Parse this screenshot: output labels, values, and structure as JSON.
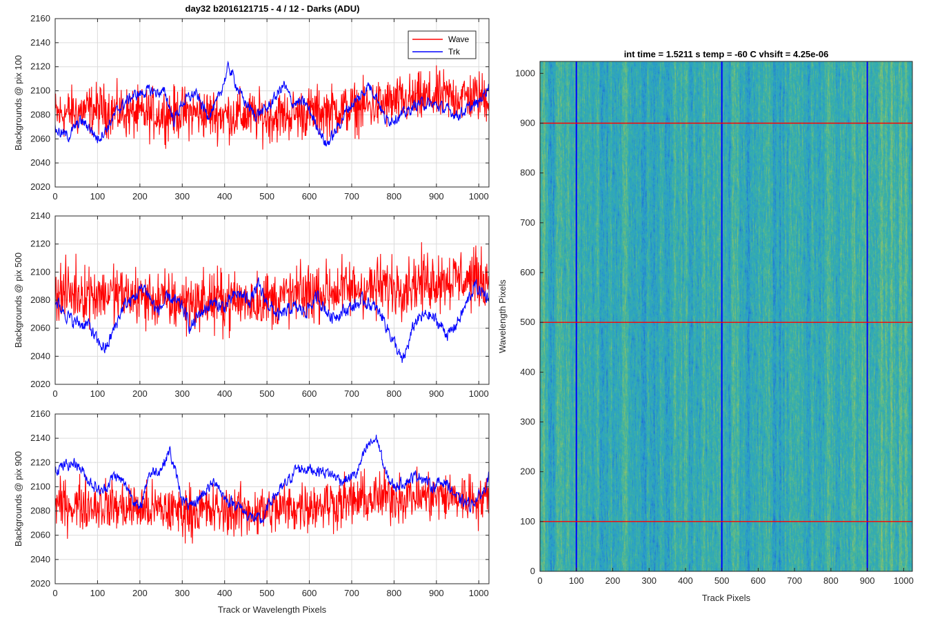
{
  "figure_title": "day32 b2016121715 - 4 / 12 - Darks (ADU)",
  "colors": {
    "wave": "#ff0000",
    "trk": "#0000ff",
    "grid": "#dcdcdc",
    "axis": "#262626"
  },
  "legend": {
    "placement": "top-right",
    "entries": [
      "Wave",
      "Trk"
    ]
  },
  "chart_data": [
    {
      "type": "line",
      "ylabel": "Backgrounds @ pix 100",
      "xlabel": "",
      "xlim": [
        0,
        1024
      ],
      "ylim": [
        2020,
        2160
      ],
      "xticks": [
        0,
        100,
        200,
        300,
        400,
        500,
        600,
        700,
        800,
        900,
        1000
      ],
      "yticks": [
        2020,
        2040,
        2060,
        2080,
        2100,
        2120,
        2140,
        2160
      ],
      "grid": true,
      "series": [
        {
          "name": "Wave",
          "mean": 2082,
          "noise": 13,
          "points": [
            [
              0,
              2080
            ],
            [
              100,
              2085
            ],
            [
              200,
              2080
            ],
            [
              300,
              2082
            ],
            [
              400,
              2080
            ],
            [
              500,
              2078
            ],
            [
              600,
              2082
            ],
            [
              700,
              2085
            ],
            [
              800,
              2090
            ],
            [
              900,
              2095
            ],
            [
              1024,
              2095
            ]
          ]
        },
        {
          "name": "Trk",
          "mean": 2085,
          "noise": 4,
          "points": [
            [
              0,
              2068
            ],
            [
              30,
              2062
            ],
            [
              60,
              2075
            ],
            [
              80,
              2070
            ],
            [
              100,
              2060
            ],
            [
              120,
              2068
            ],
            [
              150,
              2085
            ],
            [
              180,
              2095
            ],
            [
              220,
              2100
            ],
            [
              260,
              2098
            ],
            [
              280,
              2075
            ],
            [
              300,
              2090
            ],
            [
              330,
              2098
            ],
            [
              360,
              2080
            ],
            [
              380,
              2088
            ],
            [
              410,
              2120
            ],
            [
              440,
              2095
            ],
            [
              470,
              2080
            ],
            [
              500,
              2085
            ],
            [
              540,
              2105
            ],
            [
              560,
              2090
            ],
            [
              590,
              2090
            ],
            [
              620,
              2070
            ],
            [
              640,
              2055
            ],
            [
              660,
              2065
            ],
            [
              690,
              2085
            ],
            [
              720,
              2095
            ],
            [
              740,
              2105
            ],
            [
              760,
              2095
            ],
            [
              780,
              2075
            ],
            [
              820,
              2080
            ],
            [
              860,
              2090
            ],
            [
              900,
              2088
            ],
            [
              950,
              2080
            ],
            [
              1000,
              2090
            ],
            [
              1024,
              2105
            ]
          ]
        }
      ]
    },
    {
      "type": "line",
      "ylabel": "Backgrounds @ pix 500",
      "xlabel": "",
      "xlim": [
        0,
        1024
      ],
      "ylim": [
        2020,
        2140
      ],
      "xticks": [
        0,
        100,
        200,
        300,
        400,
        500,
        600,
        700,
        800,
        900,
        1000
      ],
      "yticks": [
        2020,
        2040,
        2060,
        2080,
        2100,
        2120,
        2140
      ],
      "grid": true,
      "series": [
        {
          "name": "Wave",
          "mean": 2082,
          "noise": 13,
          "points": [
            [
              0,
              2085
            ],
            [
              100,
              2085
            ],
            [
              200,
              2082
            ],
            [
              300,
              2078
            ],
            [
              400,
              2080
            ],
            [
              500,
              2080
            ],
            [
              600,
              2085
            ],
            [
              700,
              2088
            ],
            [
              800,
              2090
            ],
            [
              900,
              2095
            ],
            [
              1024,
              2095
            ]
          ]
        },
        {
          "name": "Trk",
          "mean": 2075,
          "noise": 4,
          "points": [
            [
              0,
              2080
            ],
            [
              40,
              2065
            ],
            [
              80,
              2062
            ],
            [
              100,
              2050
            ],
            [
              120,
              2045
            ],
            [
              140,
              2060
            ],
            [
              160,
              2075
            ],
            [
              180,
              2080
            ],
            [
              210,
              2090
            ],
            [
              240,
              2072
            ],
            [
              270,
              2082
            ],
            [
              300,
              2075
            ],
            [
              320,
              2060
            ],
            [
              340,
              2070
            ],
            [
              370,
              2078
            ],
            [
              400,
              2075
            ],
            [
              430,
              2085
            ],
            [
              460,
              2080
            ],
            [
              480,
              2090
            ],
            [
              500,
              2078
            ],
            [
              530,
              2068
            ],
            [
              560,
              2075
            ],
            [
              590,
              2072
            ],
            [
              620,
              2082
            ],
            [
              650,
              2068
            ],
            [
              700,
              2075
            ],
            [
              730,
              2080
            ],
            [
              770,
              2070
            ],
            [
              800,
              2050
            ],
            [
              820,
              2035
            ],
            [
              850,
              2065
            ],
            [
              880,
              2070
            ],
            [
              900,
              2065
            ],
            [
              930,
              2055
            ],
            [
              960,
              2070
            ],
            [
              990,
              2090
            ],
            [
              1024,
              2082
            ]
          ]
        }
      ]
    },
    {
      "type": "line",
      "ylabel": "Backgrounds @ pix 900",
      "xlabel": "Track or Wavelength Pixels",
      "xlim": [
        0,
        1024
      ],
      "ylim": [
        2020,
        2160
      ],
      "xticks": [
        0,
        100,
        200,
        300,
        400,
        500,
        600,
        700,
        800,
        900,
        1000
      ],
      "yticks": [
        2020,
        2040,
        2060,
        2080,
        2100,
        2120,
        2140,
        2160
      ],
      "grid": true,
      "series": [
        {
          "name": "Wave",
          "mean": 2085,
          "noise": 13,
          "points": [
            [
              0,
              2085
            ],
            [
              100,
              2085
            ],
            [
              200,
              2082
            ],
            [
              300,
              2080
            ],
            [
              400,
              2080
            ],
            [
              500,
              2080
            ],
            [
              600,
              2085
            ],
            [
              700,
              2088
            ],
            [
              800,
              2092
            ],
            [
              900,
              2092
            ],
            [
              1024,
              2090
            ]
          ]
        },
        {
          "name": "Trk",
          "mean": 2100,
          "noise": 4,
          "points": [
            [
              0,
              2115
            ],
            [
              50,
              2120
            ],
            [
              80,
              2105
            ],
            [
              110,
              2095
            ],
            [
              140,
              2110
            ],
            [
              170,
              2100
            ],
            [
              200,
              2080
            ],
            [
              220,
              2110
            ],
            [
              250,
              2115
            ],
            [
              270,
              2130
            ],
            [
              300,
              2090
            ],
            [
              320,
              2082
            ],
            [
              350,
              2095
            ],
            [
              380,
              2105
            ],
            [
              400,
              2090
            ],
            [
              430,
              2085
            ],
            [
              460,
              2075
            ],
            [
              490,
              2072
            ],
            [
              510,
              2090
            ],
            [
              540,
              2100
            ],
            [
              570,
              2115
            ],
            [
              600,
              2115
            ],
            [
              640,
              2112
            ],
            [
              680,
              2105
            ],
            [
              710,
              2110
            ],
            [
              740,
              2135
            ],
            [
              760,
              2140
            ],
            [
              780,
              2110
            ],
            [
              800,
              2100
            ],
            [
              830,
              2105
            ],
            [
              860,
              2110
            ],
            [
              890,
              2100
            ],
            [
              920,
              2105
            ],
            [
              950,
              2090
            ],
            [
              980,
              2085
            ],
            [
              1010,
              2095
            ],
            [
              1024,
              2110
            ]
          ]
        }
      ]
    },
    {
      "type": "heatmap",
      "title": "int time = 1.5211 s    temp = -60 C    vhsift = 4.25e-06",
      "xlabel": "Track Pixels",
      "ylabel": "Wavelength Pixels",
      "xlim": [
        0,
        1024
      ],
      "ylim": [
        0,
        1024
      ],
      "xticks": [
        0,
        100,
        200,
        300,
        400,
        500,
        600,
        700,
        800,
        900,
        1000
      ],
      "yticks": [
        0,
        100,
        200,
        300,
        400,
        500,
        600,
        700,
        800,
        900,
        1000
      ],
      "vertical_lines": [
        100,
        500,
        900
      ],
      "horizontal_lines": [
        100,
        500,
        900
      ],
      "vertical_line_color": "#0000ff",
      "horizontal_line_color": "#ff0000",
      "colormap": [
        "#1f6fd6",
        "#2a9fc9",
        "#38b0a8",
        "#72bf7a",
        "#b4c25c"
      ]
    }
  ]
}
